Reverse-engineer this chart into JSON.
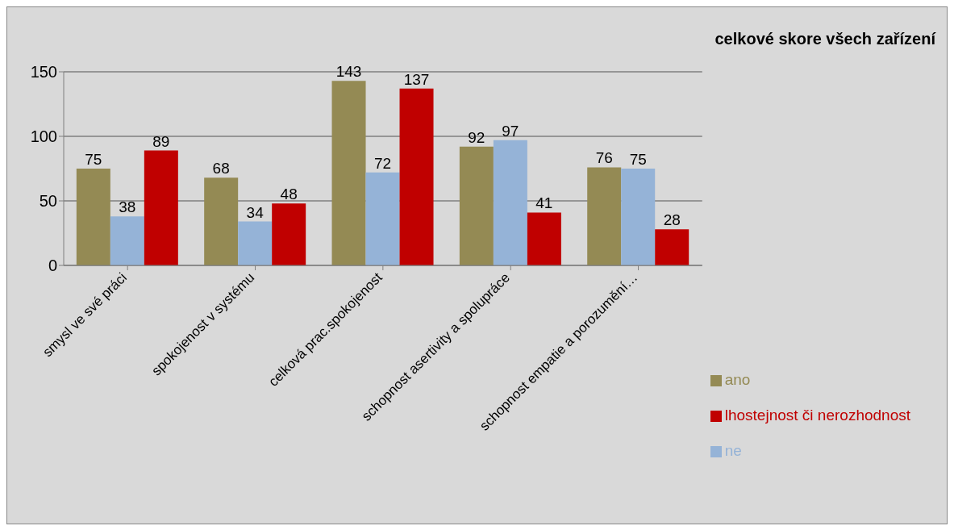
{
  "chart_data": {
    "type": "bar",
    "title": "celkové skore všech zařízení",
    "categories": [
      "smysl ve své práci",
      "spokojenost v systému",
      "celková prac.spokojenost",
      "schopnost asertivity a spolupráce",
      "schopnost empatie a porozumění…"
    ],
    "series": [
      {
        "name": "ano",
        "color": "#948a54",
        "values": [
          75,
          68,
          143,
          92,
          76
        ]
      },
      {
        "name": "ne",
        "color": "#95b3d7",
        "values": [
          38,
          34,
          72,
          97,
          75
        ]
      },
      {
        "name": "lhostejnost či nerozhodnost",
        "color": "#c00000",
        "values": [
          89,
          48,
          137,
          41,
          28
        ]
      }
    ],
    "ylim": [
      0,
      150
    ],
    "yticks": [
      0,
      50,
      100,
      150
    ],
    "grid": "y",
    "legend": "right",
    "data_labels": true
  }
}
